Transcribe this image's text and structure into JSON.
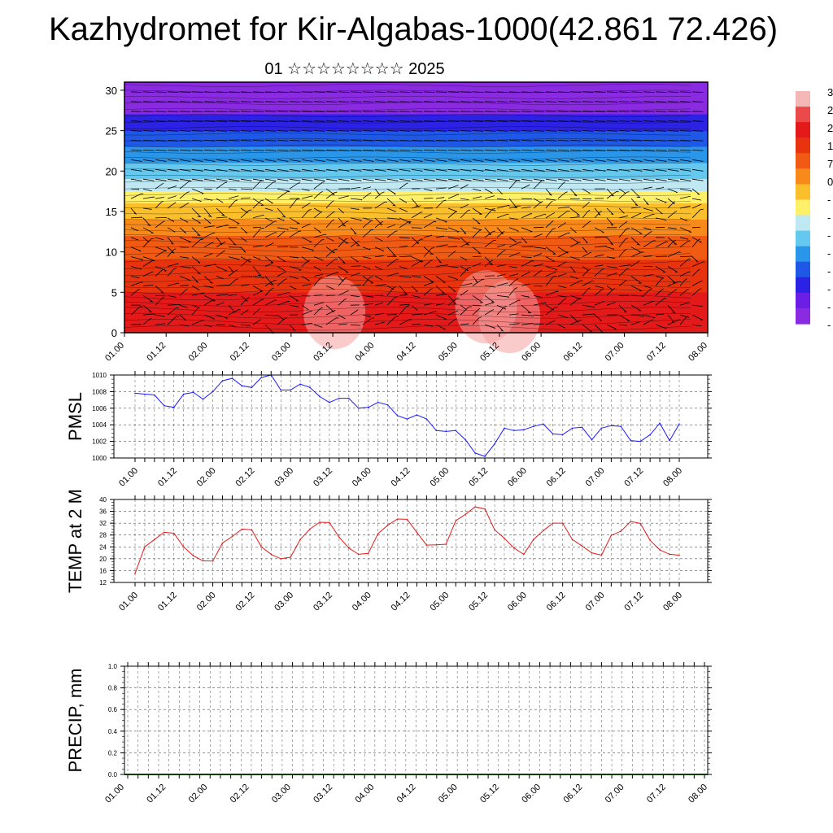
{
  "title": "Kazhydromet for Kir-Algabas-1000(42.861 72.426)",
  "subtitle": "01 ☆☆☆☆☆☆☆☆ 2025",
  "time_ticks": [
    "01.00",
    "01.12",
    "02.00",
    "02.12",
    "03.00",
    "03.12",
    "04.00",
    "04.12",
    "05.00",
    "05.12",
    "06.00",
    "06.12",
    "07.00",
    "07.12",
    "08.00"
  ],
  "colorbar": {
    "visible_labels": [
      "3",
      "2",
      "2",
      "1",
      "7",
      "0",
      "-",
      "-",
      "-",
      "-",
      "-",
      "-",
      "-",
      "-"
    ],
    "colors": [
      "#f5b6b6",
      "#ea4a4a",
      "#e41a1a",
      "#e8330f",
      "#f05a12",
      "#f78a1a",
      "#fbbf2c",
      "#fff06a",
      "#bfe8f2",
      "#64c8ef",
      "#2a96ea",
      "#1f58e6",
      "#2b22e6",
      "#6b1ee6",
      "#8a2be2"
    ]
  },
  "chart_data": [
    {
      "type": "heatmap",
      "name": "height-time cross section",
      "xlabel": "",
      "ylabel": "",
      "x_ticks": [
        "01.00",
        "01.12",
        "02.00",
        "02.12",
        "03.00",
        "03.12",
        "04.00",
        "04.12",
        "05.00",
        "05.12",
        "06.00",
        "06.12",
        "07.00",
        "07.12",
        "08.00"
      ],
      "ylim": [
        0,
        31
      ],
      "y_ticks": [
        0,
        5,
        10,
        15,
        20,
        25,
        30
      ],
      "color_bands_by_height": [
        {
          "from": 0,
          "to": 5,
          "color": "#e41a1a"
        },
        {
          "from": 5,
          "to": 9,
          "color": "#e8330f"
        },
        {
          "from": 9,
          "to": 12,
          "color": "#f05a12"
        },
        {
          "from": 12,
          "to": 14,
          "color": "#f78a1a"
        },
        {
          "from": 14,
          "to": 16,
          "color": "#fbbf2c"
        },
        {
          "from": 16,
          "to": 17.5,
          "color": "#fff06a"
        },
        {
          "from": 17.5,
          "to": 19,
          "color": "#bfe8f2"
        },
        {
          "from": 19,
          "to": 21,
          "color": "#64c8ef"
        },
        {
          "from": 21,
          "to": 23,
          "color": "#2a96ea"
        },
        {
          "from": 23,
          "to": 25,
          "color": "#1f58e6"
        },
        {
          "from": 25,
          "to": 27,
          "color": "#2b22e6"
        },
        {
          "from": 27,
          "to": 31,
          "color": "#8a2be2"
        }
      ],
      "wind_barbs": true
    },
    {
      "type": "line",
      "ylabel": "PMSL",
      "ylim": [
        1000,
        1010
      ],
      "y_ticks": [
        "1010",
        "1008",
        "1006",
        "1004",
        "1002",
        "1000"
      ],
      "x_ticks": [
        "01.00",
        "01.12",
        "02.00",
        "02.12",
        "03.00",
        "03.12",
        "04.00",
        "04.12",
        "05.00",
        "05.12",
        "06.00",
        "06.12",
        "07.00",
        "07.12",
        "08.00"
      ],
      "x_step_hours": 3,
      "color": "#1a1aff",
      "values": [
        1007.8,
        1007.7,
        1007.6,
        1006.3,
        1006.1,
        1007.7,
        1007.9,
        1007.1,
        1008.0,
        1009.3,
        1009.6,
        1008.7,
        1008.5,
        1009.7,
        1010.0,
        1008.2,
        1008.2,
        1008.9,
        1008.5,
        1007.4,
        1006.7,
        1007.2,
        1007.2,
        1006.0,
        1006.1,
        1006.7,
        1006.4,
        1005.1,
        1004.7,
        1005.2,
        1004.7,
        1003.3,
        1003.2,
        1003.3,
        1002.2,
        1000.6,
        1000.2,
        1001.7,
        1003.6,
        1003.3,
        1003.4,
        1003.8,
        1004.1,
        1002.9,
        1002.8,
        1003.6,
        1003.7,
        1002.2,
        1003.6,
        1003.9,
        1003.8,
        1002.1,
        1002.0,
        1002.8,
        1004.2,
        1002.1,
        1004.1
      ]
    },
    {
      "type": "line",
      "ylabel": "TEMP at 2 M",
      "ylim": [
        12,
        40
      ],
      "y_ticks": [
        "40",
        "36",
        "32",
        "28",
        "24",
        "20",
        "16",
        "12"
      ],
      "x_ticks": [
        "01.00",
        "01.12",
        "02.00",
        "02.12",
        "03.00",
        "03.12",
        "04.00",
        "04.12",
        "05.00",
        "05.12",
        "06.00",
        "06.12",
        "07.00",
        "07.12",
        "08.00"
      ],
      "x_step_hours": 3,
      "color": "#e61a1a",
      "values": [
        15.0,
        24.0,
        26.5,
        28.9,
        28.6,
        24.0,
        21.0,
        19.3,
        19.2,
        25.3,
        27.5,
        30.0,
        29.8,
        24.0,
        21.5,
        20.0,
        20.5,
        26.5,
        30.0,
        32.3,
        32.2,
        27.3,
        23.6,
        21.5,
        21.8,
        28.5,
        31.3,
        33.4,
        33.3,
        28.9,
        24.6,
        24.7,
        24.9,
        32.8,
        35.0,
        37.5,
        36.8,
        29.8,
        26.9,
        23.6,
        21.5,
        26.5,
        29.5,
        32.0,
        32.0,
        26.5,
        24.3,
        22.0,
        21.2,
        27.9,
        29.3,
        32.6,
        31.9,
        26.2,
        23.0,
        21.5,
        21.2
      ]
    },
    {
      "type": "bar",
      "ylabel": "PRECIP, mm",
      "ylim": [
        0,
        1
      ],
      "y_ticks": [
        "1.0",
        "0.8",
        "0.6",
        "0.4",
        "0.2",
        "0.0"
      ],
      "x_ticks": [
        "01.00",
        "01.12",
        "02.00",
        "02.12",
        "03.00",
        "03.12",
        "04.00",
        "04.12",
        "05.00",
        "05.12",
        "06.00",
        "06.12",
        "07.00",
        "07.12",
        "08.00"
      ],
      "values": [
        0,
        0,
        0,
        0,
        0,
        0,
        0,
        0,
        0,
        0,
        0,
        0,
        0,
        0,
        0,
        0,
        0,
        0,
        0,
        0,
        0,
        0,
        0,
        0,
        0,
        0,
        0,
        0,
        0,
        0,
        0,
        0,
        0,
        0,
        0,
        0,
        0,
        0,
        0,
        0,
        0,
        0,
        0,
        0,
        0,
        0,
        0,
        0,
        0,
        0,
        0,
        0,
        0,
        0,
        0,
        0,
        0
      ]
    }
  ]
}
